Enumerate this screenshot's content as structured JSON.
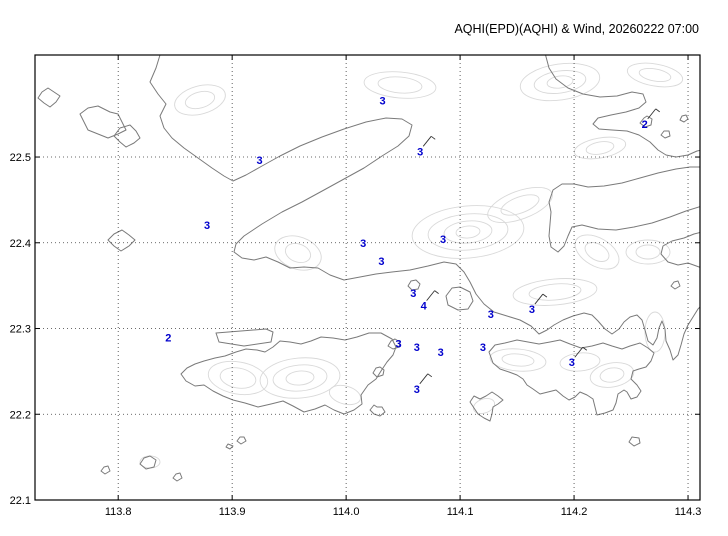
{
  "title": "AQHI(EPD)(AQHI) & Wind, 20260222 07:00",
  "axes": {
    "x_tick_labels": [
      "113.8",
      "113.9",
      "114.0",
      "114.1",
      "114.2",
      "114.3"
    ],
    "x_tick_values": [
      113.8,
      113.9,
      114.0,
      114.1,
      114.2,
      114.3
    ],
    "y_tick_labels": [
      "22.5",
      "22.4",
      "22.3",
      "22.2",
      "22.1"
    ],
    "y_tick_values": [
      22.5,
      22.4,
      22.3,
      22.2,
      22.1
    ],
    "x_range": [
      113.727,
      114.3105
    ],
    "y_range": [
      22.1,
      22.619
    ]
  },
  "colors": {
    "station_value": "#0000cd",
    "coastline": "#7a7a7a",
    "terrain_contour": "#d9d9d9",
    "grid": "#3a3a3a",
    "frame": "#000000",
    "wind_barb": "#333333"
  },
  "stations": [
    {
      "value": 3,
      "lon": 114.032,
      "lat": 22.561,
      "barb": false
    },
    {
      "value": 2,
      "lon": 114.262,
      "lat": 22.534,
      "barb": true
    },
    {
      "value": 3,
      "lon": 113.924,
      "lat": 22.492,
      "barb": false
    },
    {
      "value": 3,
      "lon": 114.065,
      "lat": 22.502,
      "barb": true
    },
    {
      "value": 3,
      "lon": 113.878,
      "lat": 22.416,
      "barb": false
    },
    {
      "value": 3,
      "lon": 114.015,
      "lat": 22.395,
      "barb": false
    },
    {
      "value": 3,
      "lon": 114.085,
      "lat": 22.4,
      "barb": false
    },
    {
      "value": 3,
      "lon": 114.031,
      "lat": 22.374,
      "barb": false
    },
    {
      "value": 3,
      "lon": 114.059,
      "lat": 22.337,
      "barb": false
    },
    {
      "value": 4,
      "lon": 114.068,
      "lat": 22.322,
      "barb": true
    },
    {
      "value": 3,
      "lon": 114.127,
      "lat": 22.312,
      "barb": false
    },
    {
      "value": 3,
      "lon": 114.163,
      "lat": 22.318,
      "barb": true
    },
    {
      "value": 2,
      "lon": 113.844,
      "lat": 22.285,
      "barb": false
    },
    {
      "value": 3,
      "lon": 114.046,
      "lat": 22.278,
      "barb": false
    },
    {
      "value": 3,
      "lon": 114.062,
      "lat": 22.274,
      "barb": false
    },
    {
      "value": 3,
      "lon": 114.083,
      "lat": 22.268,
      "barb": false
    },
    {
      "value": 3,
      "lon": 114.12,
      "lat": 22.274,
      "barb": false
    },
    {
      "value": 3,
      "lon": 114.198,
      "lat": 22.256,
      "barb": true
    },
    {
      "value": 3,
      "lon": 114.062,
      "lat": 22.225,
      "barb": true
    }
  ]
}
